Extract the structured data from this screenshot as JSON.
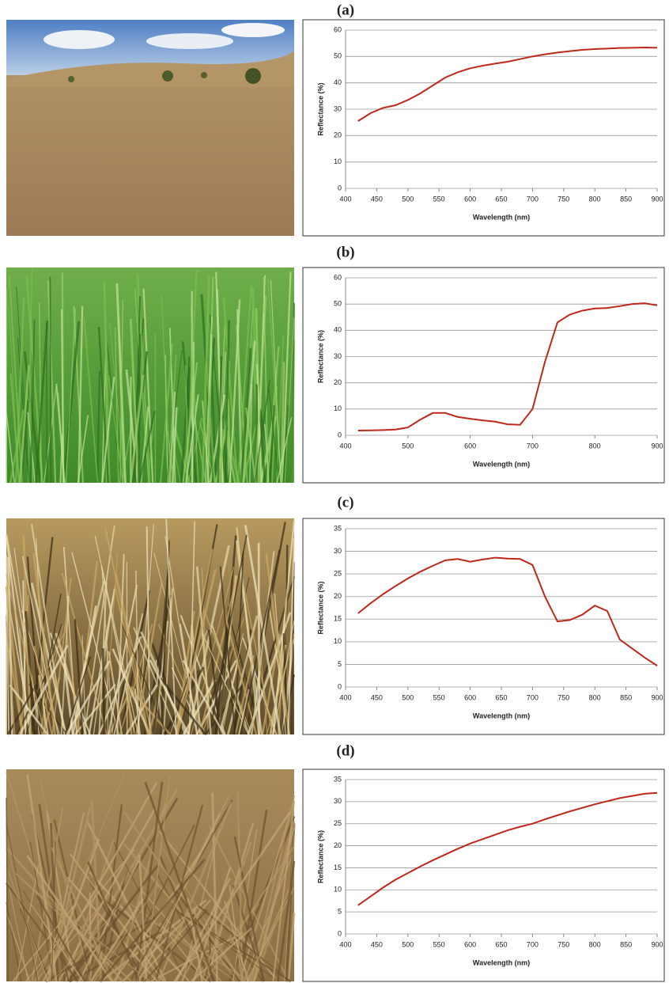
{
  "chart_data": [
    {
      "type": "line",
      "title": "(a)",
      "x_label": "Wavelength (nm)",
      "y_label": "Reflectance (%)",
      "x": [
        420,
        440,
        460,
        480,
        500,
        520,
        540,
        560,
        580,
        600,
        620,
        640,
        660,
        680,
        700,
        720,
        740,
        760,
        780,
        800,
        820,
        840,
        860,
        880,
        900
      ],
      "values": [
        25.5,
        28.5,
        30.5,
        31.5,
        33.5,
        36,
        39,
        42,
        44,
        45.5,
        46.5,
        47.3,
        48,
        49,
        50,
        50.8,
        51.5,
        52,
        52.5,
        52.8,
        53,
        53.2,
        53.3,
        53.4,
        53.3
      ],
      "color": "#c0271b",
      "xlim": [
        400,
        900
      ],
      "xticks": [
        400,
        450,
        500,
        550,
        600,
        650,
        700,
        750,
        800,
        850,
        900
      ],
      "ylim": [
        0,
        60
      ],
      "yticks": [
        0,
        10,
        20,
        30,
        40,
        50,
        60
      ],
      "grid": true
    },
    {
      "type": "line",
      "title": "(b)",
      "x_label": "Wavelength (nm)",
      "y_label": "Reflectance (%)",
      "x": [
        420,
        440,
        460,
        480,
        500,
        520,
        540,
        560,
        580,
        600,
        620,
        640,
        660,
        680,
        700,
        720,
        740,
        760,
        780,
        800,
        820,
        840,
        860,
        880,
        900
      ],
      "values": [
        1.8,
        1.9,
        2,
        2.2,
        3,
        6,
        8.5,
        8.5,
        7,
        6.3,
        5.7,
        5.2,
        4.2,
        4,
        10,
        28,
        43,
        46,
        47.5,
        48.3,
        48.5,
        49.2,
        50,
        50.3,
        49.5
      ],
      "color": "#c0271b",
      "xlim": [
        400,
        900
      ],
      "xticks": [
        400,
        500,
        600,
        700,
        800,
        900
      ],
      "ylim": [
        0,
        60
      ],
      "yticks": [
        0,
        10,
        20,
        30,
        40,
        50,
        60
      ],
      "grid": true
    },
    {
      "type": "line",
      "title": "(c)",
      "x_label": "Wavelength (nm)",
      "y_label": "Reflectance (%)",
      "x": [
        420,
        440,
        460,
        480,
        500,
        520,
        540,
        560,
        580,
        600,
        620,
        640,
        660,
        680,
        700,
        720,
        740,
        760,
        780,
        800,
        820,
        840,
        860,
        880,
        900
      ],
      "values": [
        16.3,
        18.5,
        20.5,
        22.3,
        24,
        25.5,
        26.8,
        28,
        28.3,
        27.7,
        28.2,
        28.6,
        28.4,
        28.3,
        27,
        20,
        14.5,
        14.8,
        16,
        18,
        16.8,
        10.5,
        8.5,
        6.5,
        4.7
      ],
      "color": "#c0271b",
      "xlim": [
        400,
        900
      ],
      "xticks": [
        400,
        450,
        500,
        550,
        600,
        650,
        700,
        750,
        800,
        850,
        900
      ],
      "ylim": [
        0,
        35
      ],
      "yticks": [
        0,
        5,
        10,
        15,
        20,
        25,
        30,
        35
      ],
      "grid": true
    },
    {
      "type": "line",
      "title": "(d)",
      "x_label": "Wavelength (nm)",
      "y_label": "Reflectance (%)",
      "x": [
        420,
        440,
        460,
        480,
        500,
        520,
        540,
        560,
        580,
        600,
        620,
        640,
        660,
        680,
        700,
        720,
        740,
        760,
        780,
        800,
        820,
        840,
        860,
        880,
        900
      ],
      "values": [
        6.5,
        8.5,
        10.5,
        12.3,
        13.8,
        15.3,
        16.7,
        18,
        19.3,
        20.5,
        21.5,
        22.5,
        23.5,
        24.3,
        25,
        26,
        26.9,
        27.8,
        28.6,
        29.4,
        30.1,
        30.8,
        31.3,
        31.8,
        32
      ],
      "color": "#c0271b",
      "xlim": [
        400,
        900
      ],
      "xticks": [
        400,
        450,
        500,
        550,
        600,
        650,
        700,
        750,
        800,
        850,
        900
      ],
      "ylim": [
        0,
        35
      ],
      "yticks": [
        0,
        5,
        10,
        15,
        20,
        25,
        30,
        35
      ],
      "grid": true
    }
  ]
}
